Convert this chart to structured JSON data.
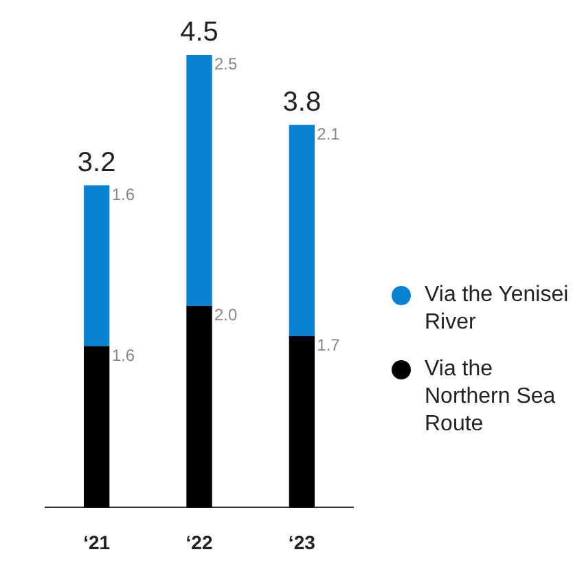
{
  "chart_data": {
    "type": "bar",
    "stacked": true,
    "categories": [
      "‘21",
      "‘22",
      "‘23"
    ],
    "series": [
      {
        "name": "Via the Northern Sea Route",
        "color": "#000000",
        "values": [
          1.6,
          2.0,
          1.7
        ],
        "value_labels": [
          "1.6",
          "2.0",
          "1.7"
        ]
      },
      {
        "name": "Via the Yenisei River",
        "color": "#0a82d2",
        "values": [
          1.6,
          2.5,
          2.1
        ],
        "value_labels": [
          "1.6",
          "2.5",
          "2.1"
        ]
      }
    ],
    "totals": [
      "3.2",
      "4.5",
      "3.8"
    ],
    "grid": false,
    "legend": "right"
  }
}
